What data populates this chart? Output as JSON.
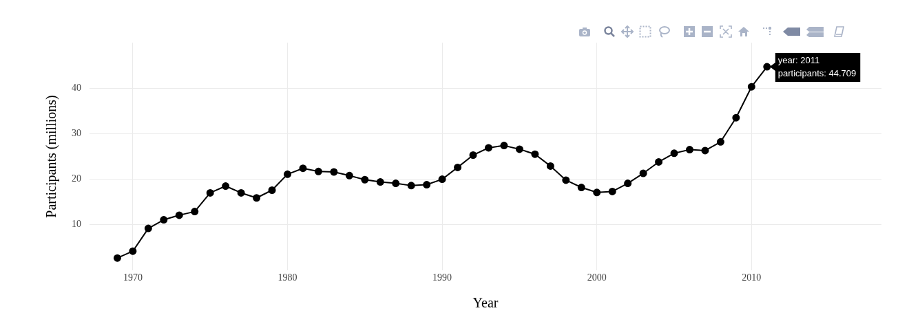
{
  "chart_data": {
    "type": "line",
    "xlabel": "Year",
    "ylabel": "Participants (millions)",
    "x": [
      1969,
      1970,
      1971,
      1972,
      1973,
      1974,
      1975,
      1976,
      1977,
      1978,
      1979,
      1980,
      1981,
      1982,
      1983,
      1984,
      1985,
      1986,
      1987,
      1988,
      1989,
      1990,
      1991,
      1992,
      1993,
      1994,
      1995,
      1996,
      1997,
      1998,
      1999,
      2000,
      2001,
      2002,
      2003,
      2004,
      2005,
      2006,
      2007,
      2008,
      2009,
      2010,
      2011
    ],
    "series": [
      {
        "color": "#000000",
        "values": [
          2.7,
          4.2,
          9.2,
          11.1,
          12.1,
          12.9,
          17.0,
          18.5,
          17.0,
          15.9,
          17.6,
          21.1,
          22.4,
          21.7,
          21.6,
          20.8,
          19.9,
          19.4,
          19.1,
          18.6,
          18.8,
          20.0,
          22.6,
          25.3,
          26.9,
          27.4,
          26.6,
          25.5,
          22.9,
          19.8,
          18.2,
          17.1,
          17.3,
          19.1,
          21.3,
          23.8,
          25.7,
          26.5,
          26.3,
          28.2,
          33.5,
          40.3,
          44.709
        ]
      }
    ],
    "xlim": [
      1967.2,
      2018.4
    ],
    "ylim": [
      0,
      50
    ],
    "xticks": [
      1970,
      1980,
      1990,
      2000,
      2010
    ],
    "yticks": [
      10,
      20,
      30,
      40
    ],
    "grid": true,
    "legend": false,
    "marker": "circle",
    "line_style": "solid",
    "annotations": [
      {
        "text": "year: 2011\nparticipants: 44.709",
        "x": 2011,
        "y": 44.709
      }
    ]
  }
}
